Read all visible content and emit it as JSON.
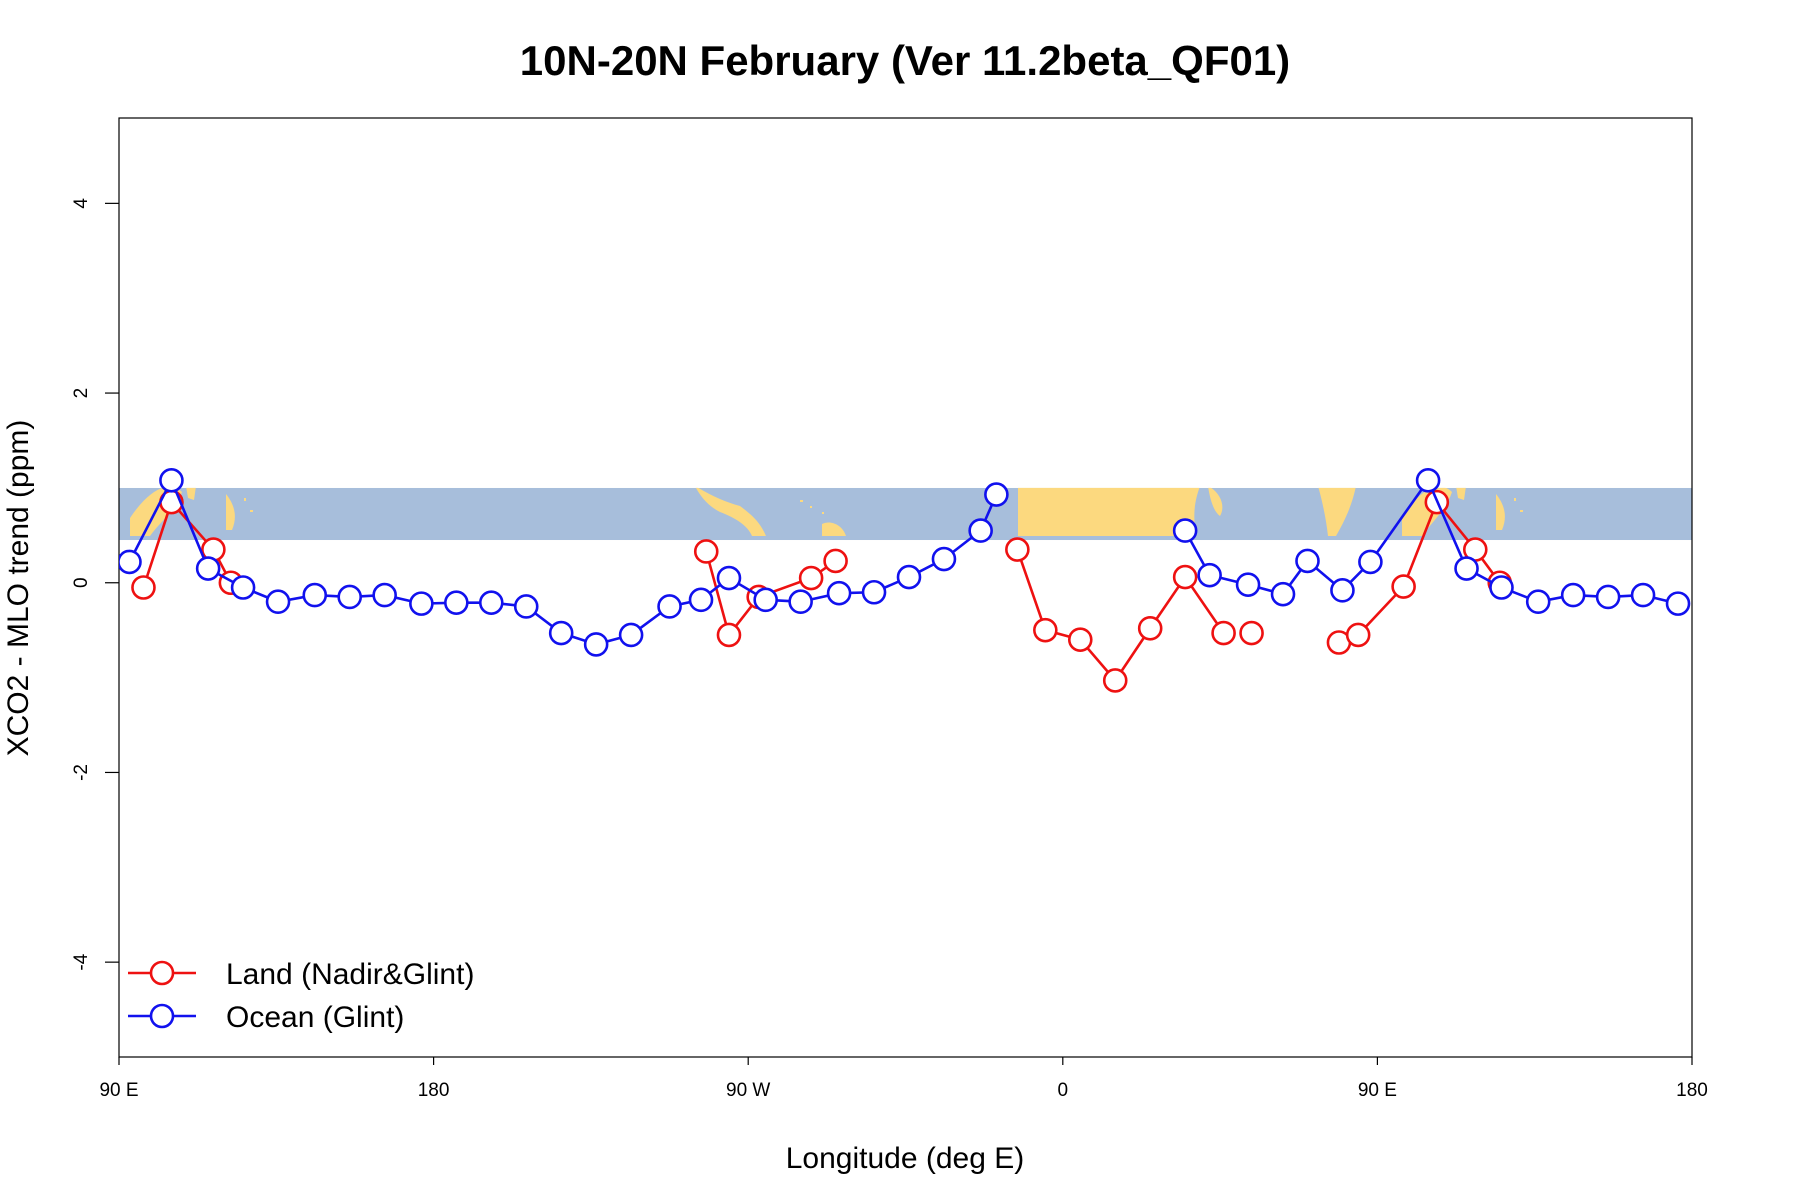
{
  "chart_data": {
    "type": "line",
    "title": "10N-20N February (Ver 11.2beta_QF01)",
    "xlabel": "Longitude (deg E)",
    "ylabel": "XCO2 - MLO trend (ppm)",
    "xlim": [
      90,
      540
    ],
    "ylim": [
      -5,
      4.9
    ],
    "xticks": [
      {
        "value": 90,
        "label": "90 E"
      },
      {
        "value": 180,
        "label": "180"
      },
      {
        "value": 270,
        "label": "90 W"
      },
      {
        "value": 360,
        "label": "0"
      },
      {
        "value": 450,
        "label": "90 E"
      },
      {
        "value": 540,
        "label": "180"
      }
    ],
    "yticks": [
      {
        "value": -4,
        "label": "-4"
      },
      {
        "value": -2,
        "label": "-2"
      },
      {
        "value": 0,
        "label": "0"
      },
      {
        "value": 2,
        "label": "2"
      },
      {
        "value": 4,
        "label": "4"
      }
    ],
    "map_band": {
      "ymin": 0.45,
      "ymax": 1.0,
      "ocean_color": "#A7BEDB",
      "land_color": "#FCD97F"
    },
    "legend": {
      "position": "bottom-left"
    },
    "series": [
      {
        "name": "Land (Nadir&Glint)",
        "color": "#EE1111",
        "segments": [
          {
            "x": [
              97,
              105,
              117,
              122
            ],
            "y": [
              -0.05,
              0.85,
              0.35,
              0.0
            ]
          },
          {
            "x": [
              258,
              264.5,
              273,
              288,
              295
            ],
            "y": [
              0.33,
              -0.55,
              -0.15,
              0.05,
              0.23
            ]
          },
          {
            "x": [
              347,
              355,
              365,
              375,
              385,
              395,
              406
            ],
            "y": [
              0.35,
              -0.5,
              -0.6,
              -1.03,
              -0.48,
              0.06,
              -0.53
            ]
          },
          {
            "x": [
              414
            ],
            "y": [
              -0.53
            ]
          },
          {
            "x": [
              439,
              444.5,
              457.5,
              467,
              478,
              485
            ],
            "y": [
              -0.63,
              -0.55,
              -0.04,
              0.85,
              0.35,
              0.0
            ]
          }
        ]
      },
      {
        "name": "Ocean (Glint)",
        "color": "#1111EE",
        "segments": [
          {
            "x": [
              93,
              105,
              115.5,
              125.5,
              135.5,
              146,
              156,
              166,
              176.5,
              186.5,
              196.5,
              206.5,
              216.5,
              226.5,
              236.5,
              247.5,
              256.5,
              264.5,
              275,
              285,
              296,
              306,
              316,
              326,
              336.5,
              341
            ],
            "y": [
              0.22,
              1.08,
              0.15,
              -0.05,
              -0.2,
              -0.13,
              -0.15,
              -0.13,
              -0.22,
              -0.21,
              -0.21,
              -0.25,
              -0.53,
              -0.65,
              -0.55,
              -0.25,
              -0.18,
              0.05,
              -0.18,
              -0.2,
              -0.11,
              -0.1,
              0.06,
              0.25,
              0.55,
              0.93
            ]
          },
          {
            "x": [
              395,
              402,
              413,
              423,
              430,
              440,
              448,
              464.5,
              475.5,
              485.5,
              496,
              506,
              516,
              526,
              536
            ],
            "y": [
              0.55,
              0.08,
              -0.02,
              -0.12,
              0.23,
              -0.08,
              0.22,
              1.08,
              0.15,
              -0.05,
              -0.2,
              -0.13,
              -0.15,
              -0.13,
              -0.22
            ]
          }
        ]
      }
    ]
  }
}
